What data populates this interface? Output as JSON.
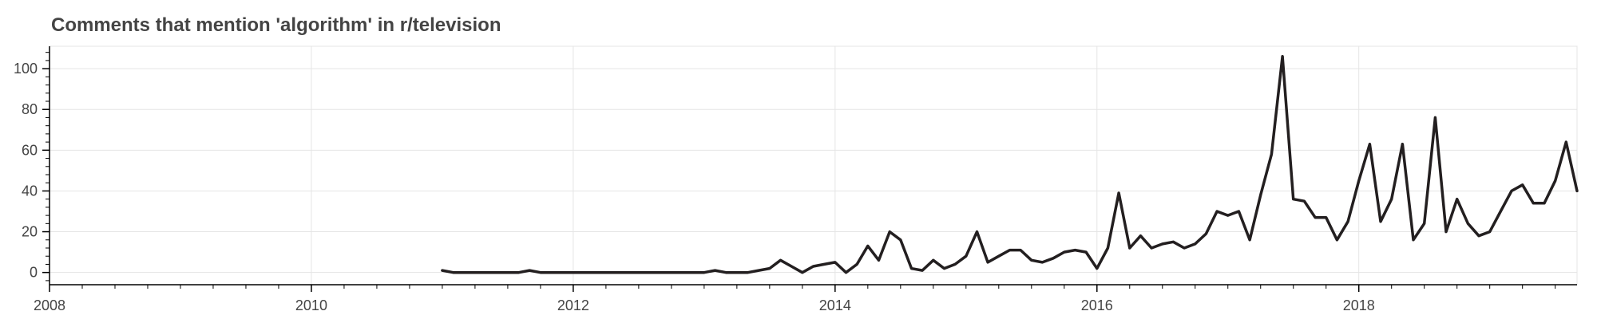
{
  "chart_data": {
    "type": "line",
    "title": "Comments that mention 'algorithm' in r/television",
    "xlabel": "",
    "ylabel": "",
    "x_ticks": [
      "2008",
      "2010",
      "2012",
      "2014",
      "2016",
      "2018"
    ],
    "y_ticks": [
      "0",
      "20",
      "40",
      "60",
      "80",
      "100"
    ],
    "xlim": [
      "2008-01",
      "2019-09"
    ],
    "ylim": [
      -6,
      111
    ],
    "grid": true,
    "legend": "none",
    "series": [
      {
        "color": "#231f20",
        "points": [
          [
            "2011-01",
            1
          ],
          [
            "2011-02",
            0
          ],
          [
            "2011-03",
            0
          ],
          [
            "2011-04",
            0
          ],
          [
            "2011-05",
            0
          ],
          [
            "2011-06",
            0
          ],
          [
            "2011-07",
            0
          ],
          [
            "2011-08",
            0
          ],
          [
            "2011-09",
            1
          ],
          [
            "2011-10",
            0
          ],
          [
            "2011-11",
            0
          ],
          [
            "2011-12",
            0
          ],
          [
            "2012-01",
            0
          ],
          [
            "2012-02",
            0
          ],
          [
            "2012-03",
            0
          ],
          [
            "2012-04",
            0
          ],
          [
            "2012-05",
            0
          ],
          [
            "2012-06",
            0
          ],
          [
            "2012-07",
            0
          ],
          [
            "2012-08",
            0
          ],
          [
            "2012-09",
            0
          ],
          [
            "2012-10",
            0
          ],
          [
            "2012-11",
            0
          ],
          [
            "2012-12",
            0
          ],
          [
            "2013-01",
            0
          ],
          [
            "2013-02",
            1
          ],
          [
            "2013-03",
            0
          ],
          [
            "2013-04",
            0
          ],
          [
            "2013-05",
            0
          ],
          [
            "2013-06",
            1
          ],
          [
            "2013-07",
            2
          ],
          [
            "2013-08",
            6
          ],
          [
            "2013-09",
            3
          ],
          [
            "2013-10",
            0
          ],
          [
            "2013-11",
            3
          ],
          [
            "2013-12",
            4
          ],
          [
            "2014-01",
            5
          ],
          [
            "2014-02",
            0
          ],
          [
            "2014-03",
            4
          ],
          [
            "2014-04",
            13
          ],
          [
            "2014-05",
            6
          ],
          [
            "2014-06",
            20
          ],
          [
            "2014-07",
            16
          ],
          [
            "2014-08",
            2
          ],
          [
            "2014-09",
            1
          ],
          [
            "2014-10",
            6
          ],
          [
            "2014-11",
            2
          ],
          [
            "2014-12",
            4
          ],
          [
            "2015-01",
            8
          ],
          [
            "2015-02",
            20
          ],
          [
            "2015-03",
            5
          ],
          [
            "2015-04",
            8
          ],
          [
            "2015-05",
            11
          ],
          [
            "2015-06",
            11
          ],
          [
            "2015-07",
            6
          ],
          [
            "2015-08",
            5
          ],
          [
            "2015-09",
            7
          ],
          [
            "2015-10",
            10
          ],
          [
            "2015-11",
            11
          ],
          [
            "2015-12",
            10
          ],
          [
            "2016-01",
            2
          ],
          [
            "2016-02",
            12
          ],
          [
            "2016-03",
            39
          ],
          [
            "2016-04",
            12
          ],
          [
            "2016-05",
            18
          ],
          [
            "2016-06",
            12
          ],
          [
            "2016-07",
            14
          ],
          [
            "2016-08",
            15
          ],
          [
            "2016-09",
            12
          ],
          [
            "2016-10",
            14
          ],
          [
            "2016-11",
            19
          ],
          [
            "2016-12",
            30
          ],
          [
            "2017-01",
            28
          ],
          [
            "2017-02",
            30
          ],
          [
            "2017-03",
            16
          ],
          [
            "2017-04",
            38
          ],
          [
            "2017-05",
            58
          ],
          [
            "2017-06",
            106
          ],
          [
            "2017-07",
            36
          ],
          [
            "2017-08",
            35
          ],
          [
            "2017-09",
            27
          ],
          [
            "2017-10",
            27
          ],
          [
            "2017-11",
            16
          ],
          [
            "2017-12",
            25
          ],
          [
            "2018-01",
            45
          ],
          [
            "2018-02",
            63
          ],
          [
            "2018-03",
            25
          ],
          [
            "2018-04",
            36
          ],
          [
            "2018-05",
            63
          ],
          [
            "2018-06",
            16
          ],
          [
            "2018-07",
            24
          ],
          [
            "2018-08",
            76
          ],
          [
            "2018-09",
            20
          ],
          [
            "2018-10",
            36
          ],
          [
            "2018-11",
            24
          ],
          [
            "2018-12",
            18
          ],
          [
            "2019-01",
            20
          ],
          [
            "2019-02",
            30
          ],
          [
            "2019-03",
            40
          ],
          [
            "2019-04",
            43
          ],
          [
            "2019-05",
            34
          ],
          [
            "2019-06",
            34
          ],
          [
            "2019-07",
            45
          ],
          [
            "2019-08",
            64
          ],
          [
            "2019-09",
            40
          ]
        ]
      }
    ]
  }
}
